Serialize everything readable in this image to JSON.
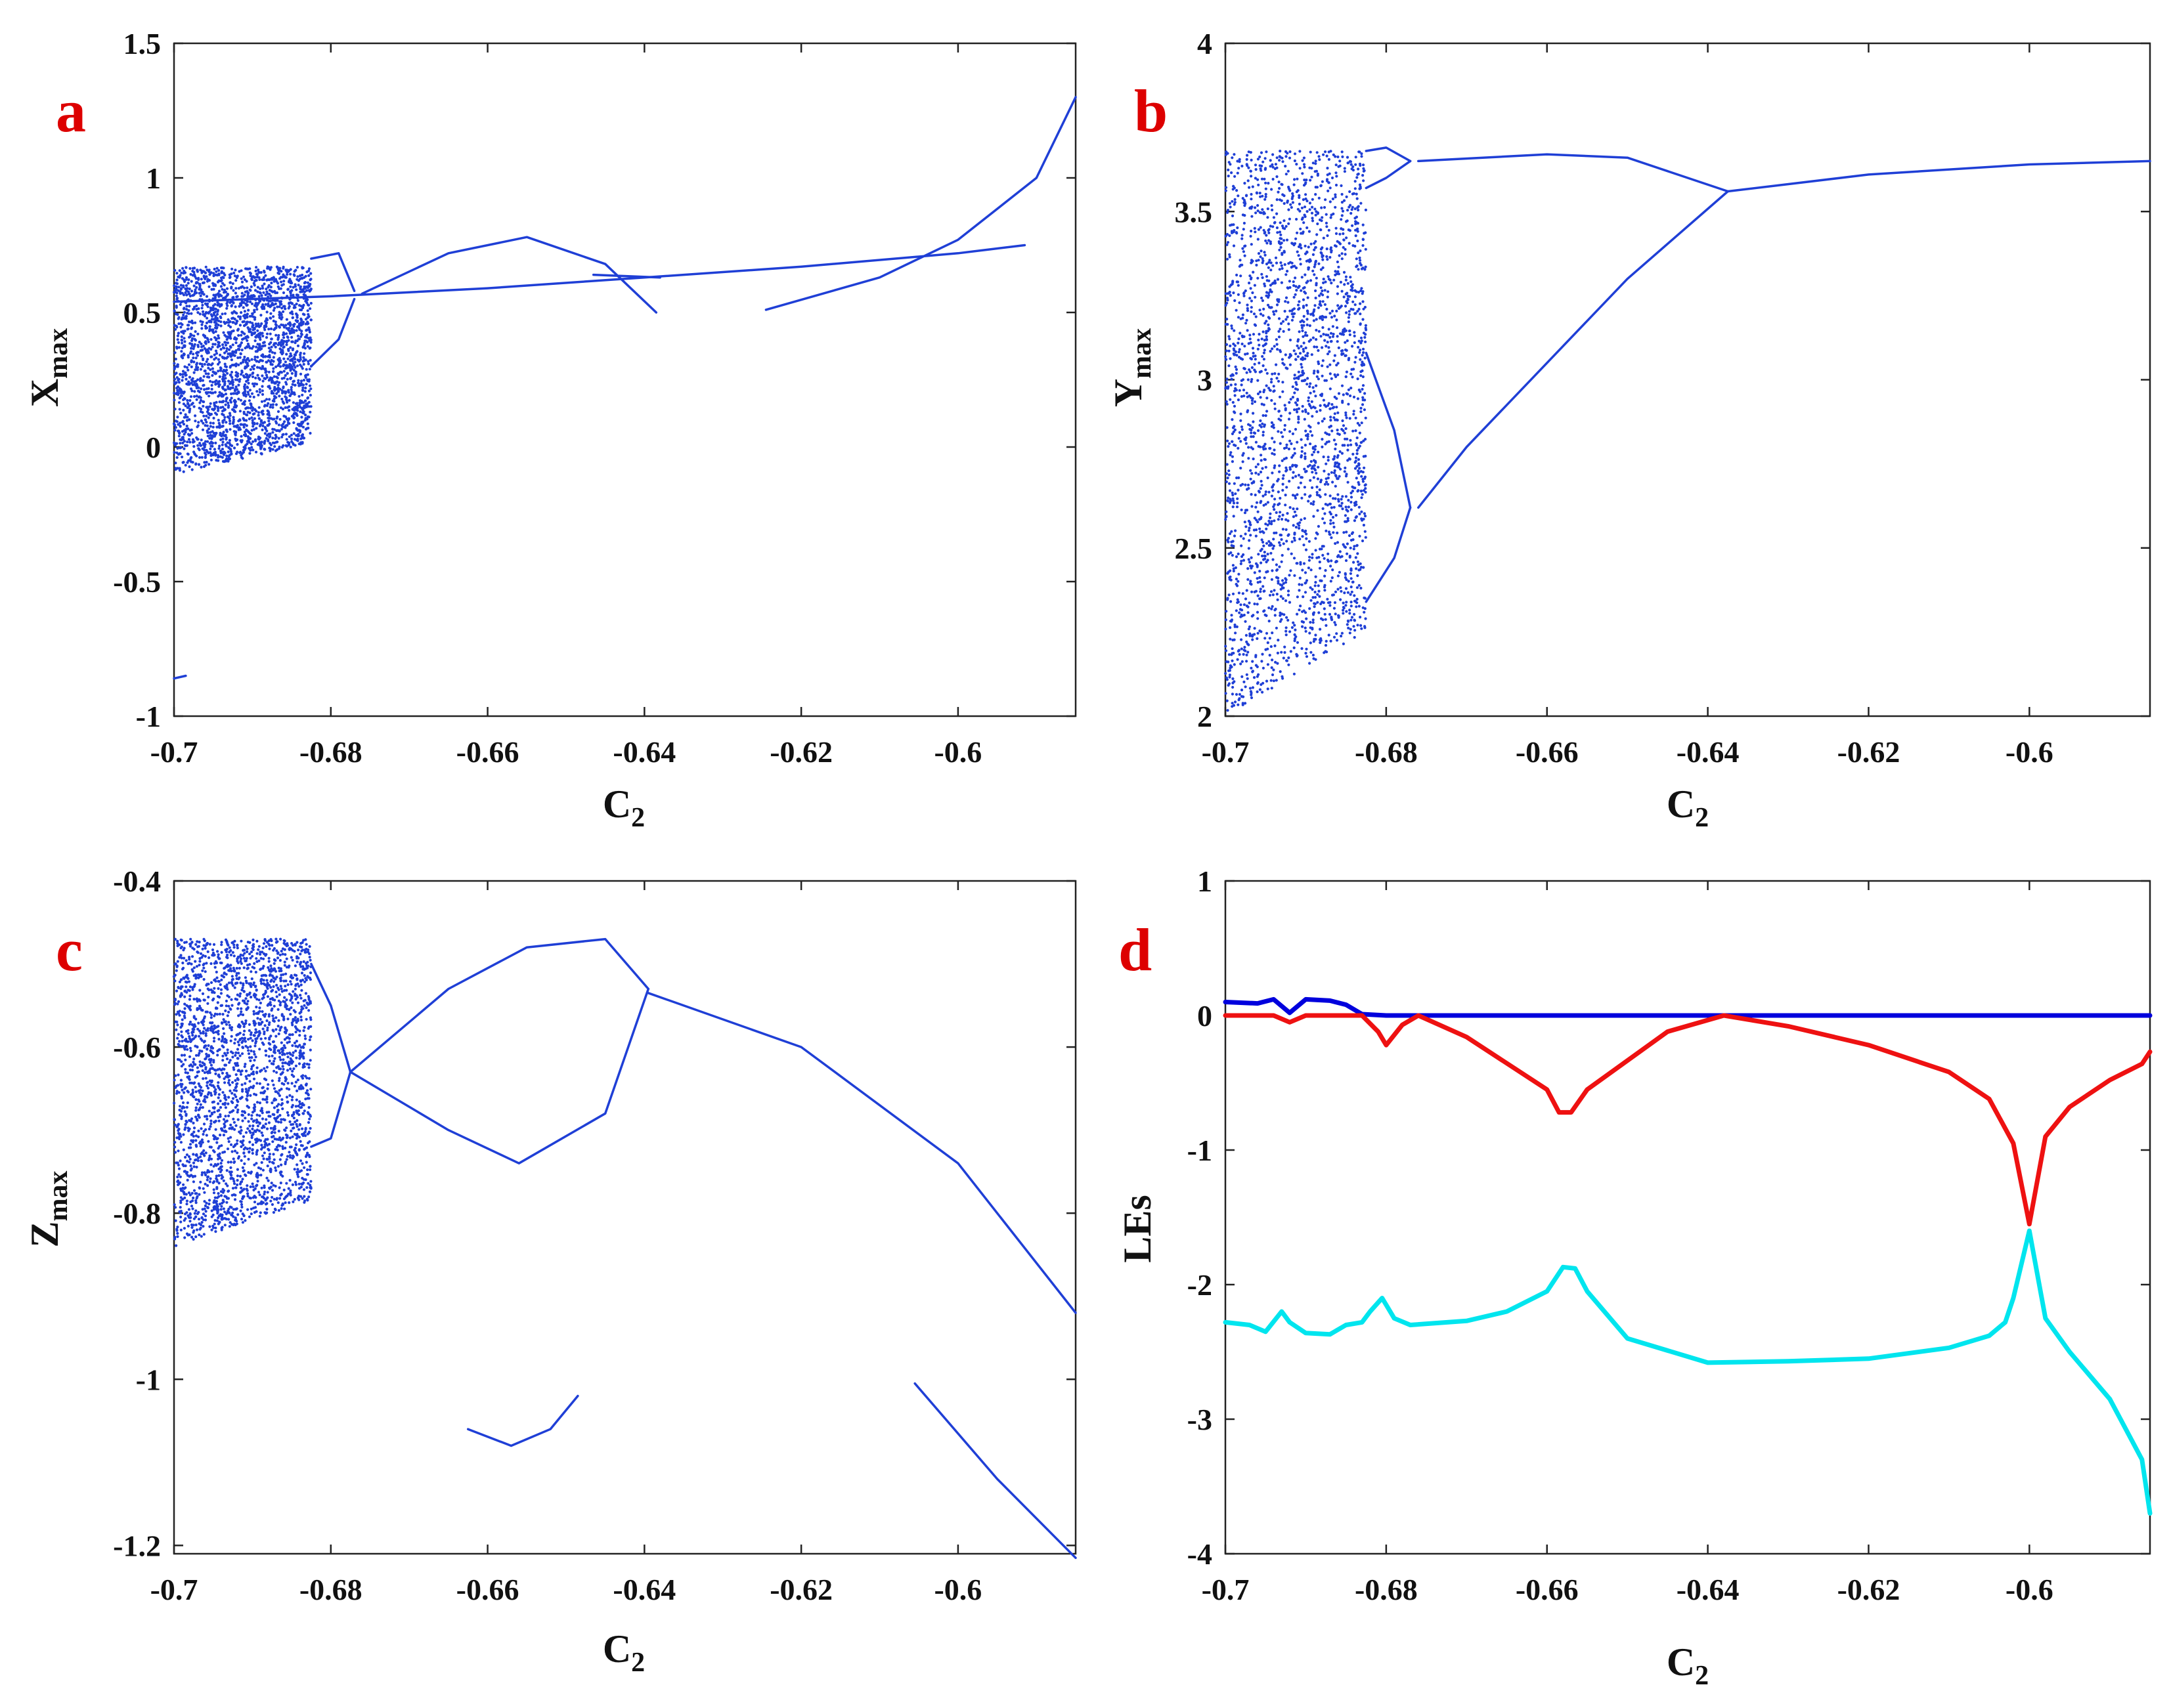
{
  "figure": {
    "colors": {
      "points": "#1f3fd6",
      "blue": "#0000dd",
      "red": "#ee1111",
      "cyan": "#00e5ee",
      "label": "#dd0000"
    }
  },
  "chart_data": [
    {
      "id": "a",
      "type": "scatter",
      "panel_label": "a",
      "xlabel": "C2",
      "xlabel_main": "C",
      "xlabel_sub": "2",
      "ylabel": "Xmax",
      "ylabel_main": "X",
      "ylabel_sub": "max",
      "xlim": [
        -0.7,
        -0.585
      ],
      "ylim": [
        -1,
        1.5
      ],
      "xticks": [
        -0.7,
        -0.68,
        -0.66,
        -0.64,
        -0.62,
        -0.6
      ],
      "xtick_labels": [
        "-0.7",
        "-0.68",
        "-0.66",
        "-0.64",
        "-0.62",
        "-0.6"
      ],
      "yticks": [
        -1,
        -0.5,
        0,
        0.5,
        1,
        1.5
      ],
      "ytick_labels": [
        "-1",
        "-0.5",
        "0",
        "0.5",
        "1",
        "1.5"
      ],
      "chaotic_region": {
        "x": [
          -0.7,
          -0.6825
        ],
        "y_bands": [
          [
            -0.1,
            0.67
          ]
        ]
      },
      "series": [
        {
          "name": "branch-line",
          "x": [
            -0.7,
            -0.68,
            -0.66,
            -0.64,
            -0.62,
            -0.6,
            -0.5915
          ],
          "y": [
            0.54,
            0.56,
            0.59,
            0.63,
            0.67,
            0.72,
            0.75
          ]
        },
        {
          "name": "period-2-upper",
          "x": [
            -0.6825,
            -0.679,
            -0.677
          ],
          "y": [
            0.7,
            0.72,
            0.58
          ]
        },
        {
          "name": "period-2-lower",
          "x": [
            -0.6825,
            -0.679,
            -0.677
          ],
          "y": [
            0.3,
            0.4,
            0.55
          ]
        },
        {
          "name": "loop-upper",
          "x": [
            -0.676,
            -0.665,
            -0.655,
            -0.645,
            -0.6385
          ],
          "y": [
            0.57,
            0.72,
            0.78,
            0.68,
            0.5
          ]
        },
        {
          "name": "short-segment",
          "x": [
            -0.6465,
            -0.638
          ],
          "y": [
            0.64,
            0.63
          ]
        },
        {
          "name": "rising-curve",
          "x": [
            -0.6245,
            -0.61,
            -0.6,
            -0.59,
            -0.585
          ],
          "y": [
            0.51,
            0.63,
            0.77,
            1.0,
            1.3
          ]
        },
        {
          "name": "bottom-stub",
          "x": [
            -0.7,
            -0.6985
          ],
          "y": [
            -0.86,
            -0.85
          ]
        }
      ]
    },
    {
      "id": "b",
      "type": "scatter",
      "panel_label": "b",
      "xlabel": "C2",
      "xlabel_main": "C",
      "xlabel_sub": "2",
      "ylabel": "Ymax",
      "ylabel_main": "Y",
      "ylabel_sub": "max",
      "xlim": [
        -0.7,
        -0.585
      ],
      "ylim": [
        2,
        4
      ],
      "xticks": [
        -0.7,
        -0.68,
        -0.66,
        -0.64,
        -0.62,
        -0.6
      ],
      "xtick_labels": [
        "-0.7",
        "-0.68",
        "-0.66",
        "-0.64",
        "-0.62",
        "-0.6"
      ],
      "yticks": [
        2,
        2.5,
        3,
        3.5,
        4
      ],
      "ytick_labels": [
        "2",
        "2.5",
        "3",
        "3.5",
        "4"
      ],
      "chaotic_region": {
        "x": [
          -0.7,
          -0.6825
        ],
        "y_bands": [
          [
            2.0,
            3.68
          ]
        ]
      },
      "series": [
        {
          "name": "upper-branch",
          "x": [
            -0.676,
            -0.66,
            -0.65,
            -0.6375
          ],
          "y": [
            3.65,
            3.67,
            3.66,
            3.56
          ]
        },
        {
          "name": "right-line",
          "x": [
            -0.6375,
            -0.62,
            -0.6,
            -0.585
          ],
          "y": [
            3.56,
            3.61,
            3.64,
            3.65
          ]
        },
        {
          "name": "lower-branch",
          "x": [
            -0.6375,
            -0.65,
            -0.66,
            -0.67,
            -0.676
          ],
          "y": [
            3.56,
            3.3,
            3.05,
            2.8,
            2.62
          ]
        },
        {
          "name": "inner-loop",
          "x": [
            -0.6825,
            -0.68,
            -0.677
          ],
          "y": [
            3.68,
            3.69,
            3.65
          ]
        },
        {
          "name": "inner-loop-lower",
          "x": [
            -0.6825,
            -0.68,
            -0.677
          ],
          "y": [
            3.57,
            3.6,
            3.65
          ]
        },
        {
          "name": "lens-right",
          "x": [
            -0.6825,
            -0.679,
            -0.677
          ],
          "y": [
            3.08,
            2.85,
            2.62
          ]
        },
        {
          "name": "lens-bottom",
          "x": [
            -0.6825,
            -0.679,
            -0.677
          ],
          "y": [
            2.34,
            2.47,
            2.62
          ]
        }
      ]
    },
    {
      "id": "c",
      "type": "scatter",
      "panel_label": "c",
      "xlabel": "C2",
      "xlabel_main": "C",
      "xlabel_sub": "2",
      "ylabel": "Zmax",
      "ylabel_main": "Z",
      "ylabel_sub": "max",
      "xlim": [
        -0.7,
        -0.585
      ],
      "ylim": [
        -1.21,
        -0.4
      ],
      "xticks": [
        -0.7,
        -0.68,
        -0.66,
        -0.64,
        -0.62,
        -0.6
      ],
      "xtick_labels": [
        "-0.7",
        "-0.68",
        "-0.66",
        "-0.64",
        "-0.62",
        "-0.6"
      ],
      "yticks": [
        -1.2,
        -1,
        -0.8,
        -0.6,
        -0.4
      ],
      "ytick_labels": [
        "-1.2",
        "-1",
        "-0.8",
        "-0.6",
        "-0.4"
      ],
      "chaotic_region": {
        "x": [
          -0.7,
          -0.6825
        ],
        "y_bands": [
          [
            -0.84,
            -0.47
          ]
        ]
      },
      "series": [
        {
          "name": "loop-upper",
          "x": [
            -0.6775,
            -0.665,
            -0.655,
            -0.645,
            -0.6395
          ],
          "y": [
            -0.63,
            -0.53,
            -0.48,
            -0.47,
            -0.53
          ]
        },
        {
          "name": "loop-lower",
          "x": [
            -0.6775,
            -0.665,
            -0.656,
            -0.645,
            -0.6395
          ],
          "y": [
            -0.63,
            -0.7,
            -0.74,
            -0.68,
            -0.53
          ]
        },
        {
          "name": "right-curve",
          "x": [
            -0.6395,
            -0.62,
            -0.6,
            -0.585
          ],
          "y": [
            -0.535,
            -0.6,
            -0.74,
            -0.92
          ]
        },
        {
          "name": "lower-arc",
          "x": [
            -0.6625,
            -0.657,
            -0.652,
            -0.6485
          ],
          "y": [
            -1.06,
            -1.08,
            -1.06,
            -1.02
          ]
        },
        {
          "name": "lower-right",
          "x": [
            -0.6055,
            -0.595,
            -0.585
          ],
          "y": [
            -1.005,
            -1.12,
            -1.215
          ]
        },
        {
          "name": "p2-upper",
          "x": [
            -0.6825,
            -0.68,
            -0.6775
          ],
          "y": [
            -0.5,
            -0.55,
            -0.63
          ]
        },
        {
          "name": "p2-lower",
          "x": [
            -0.6825,
            -0.68,
            -0.6775
          ],
          "y": [
            -0.72,
            -0.71,
            -0.63
          ]
        }
      ]
    },
    {
      "id": "d",
      "type": "line",
      "panel_label": "d",
      "xlabel": "C2",
      "xlabel_main": "C",
      "xlabel_sub": "2",
      "ylabel": "LEs",
      "ylabel_main": "LEs",
      "ylabel_sub": "",
      "xlim": [
        -0.7,
        -0.585
      ],
      "ylim": [
        -4,
        1
      ],
      "xticks": [
        -0.7,
        -0.68,
        -0.66,
        -0.64,
        -0.62,
        -0.6
      ],
      "xtick_labels": [
        "-0.7",
        "-0.68",
        "-0.66",
        "-0.64",
        "-0.62",
        "-0.6"
      ],
      "yticks": [
        -4,
        -3,
        -2,
        -1,
        0,
        1
      ],
      "ytick_labels": [
        "-4",
        "-3",
        "-2",
        "-1",
        "0",
        "1"
      ],
      "series": [
        {
          "name": "LE1",
          "color": "blue",
          "x": [
            -0.7,
            -0.696,
            -0.694,
            -0.692,
            -0.69,
            -0.687,
            -0.685,
            -0.683,
            -0.68,
            -0.64,
            -0.6,
            -0.585
          ],
          "y": [
            0.1,
            0.09,
            0.12,
            0.02,
            0.12,
            0.11,
            0.08,
            0.01,
            0.0,
            0.0,
            0.0,
            0.0
          ]
        },
        {
          "name": "LE2",
          "color": "red",
          "x": [
            -0.7,
            -0.694,
            -0.692,
            -0.69,
            -0.683,
            -0.681,
            -0.68,
            -0.678,
            -0.676,
            -0.67,
            -0.66,
            -0.6585,
            -0.657,
            -0.655,
            -0.645,
            -0.638,
            -0.63,
            -0.62,
            -0.61,
            -0.605,
            -0.602,
            -0.6,
            -0.598,
            -0.595,
            -0.59,
            -0.586,
            -0.585
          ],
          "y": [
            0.0,
            0.0,
            -0.05,
            0.0,
            0.0,
            -0.12,
            -0.22,
            -0.07,
            0.0,
            -0.16,
            -0.55,
            -0.72,
            -0.72,
            -0.55,
            -0.12,
            0.0,
            -0.08,
            -0.22,
            -0.42,
            -0.62,
            -0.95,
            -1.55,
            -0.9,
            -0.68,
            -0.48,
            -0.36,
            -0.27
          ]
        },
        {
          "name": "LE3",
          "color": "cyan",
          "x": [
            -0.7,
            -0.697,
            -0.695,
            -0.693,
            -0.692,
            -0.69,
            -0.687,
            -0.685,
            -0.683,
            -0.682,
            -0.6805,
            -0.679,
            -0.677,
            -0.67,
            -0.665,
            -0.66,
            -0.658,
            -0.6565,
            -0.655,
            -0.65,
            -0.64,
            -0.63,
            -0.62,
            -0.61,
            -0.605,
            -0.603,
            -0.602,
            -0.6,
            -0.598,
            -0.595,
            -0.59,
            -0.586,
            -0.585
          ],
          "y": [
            -2.28,
            -2.3,
            -2.35,
            -2.2,
            -2.28,
            -2.36,
            -2.37,
            -2.3,
            -2.28,
            -2.2,
            -2.1,
            -2.25,
            -2.3,
            -2.27,
            -2.2,
            -2.05,
            -1.87,
            -1.88,
            -2.05,
            -2.4,
            -2.58,
            -2.57,
            -2.55,
            -2.47,
            -2.38,
            -2.28,
            -2.1,
            -1.6,
            -2.25,
            -2.5,
            -2.85,
            -3.3,
            -3.7
          ]
        }
      ]
    }
  ]
}
